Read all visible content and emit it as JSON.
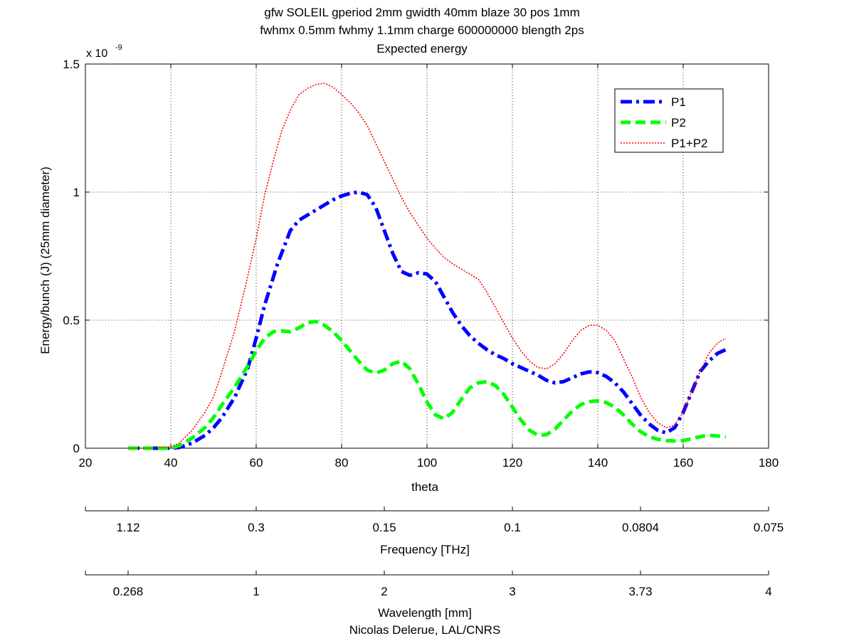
{
  "chart_data": {
    "type": "line",
    "title_lines": [
      "gfw SOLEIL gperiod 2mm gwidth 40mm blaze 30 pos 1mm",
      "fwhmx 0.5mm fwhmy 1.1mm charge 600000000 blength 2ps",
      "Expected energy"
    ],
    "xlabel": "theta",
    "ylabel": "Energy/bunch (J) (25mm diameter)",
    "y_exponent_label": "x 10",
    "y_exponent_power": "-9",
    "xlim": [
      20,
      180
    ],
    "ylim": [
      0,
      1.5
    ],
    "y_scale_factor": 1e-09,
    "xticks": [
      20,
      40,
      60,
      80,
      100,
      120,
      140,
      160,
      180
    ],
    "xtick_labels": [
      "20",
      "40",
      "60",
      "80",
      "100",
      "120",
      "140",
      "160",
      "180"
    ],
    "yticks": [
      0,
      0.5,
      1,
      1.5
    ],
    "ytick_labels": [
      "0",
      "0.5",
      "1",
      "1.5"
    ],
    "grid": true,
    "legend_position": "top-right",
    "series": [
      {
        "name": "P1",
        "color": "#0000ff",
        "style": "dashdot",
        "x": [
          30,
          35,
          40,
          42,
          45,
          48,
          50,
          52,
          55,
          58,
          60,
          62,
          65,
          68,
          70,
          72,
          75,
          78,
          80,
          82,
          84,
          86,
          88,
          90,
          92,
          94,
          96,
          98,
          100,
          102,
          104,
          106,
          108,
          110,
          112,
          114,
          116,
          118,
          120,
          122,
          124,
          126,
          128,
          130,
          132,
          134,
          136,
          138,
          140,
          142,
          144,
          146,
          148,
          150,
          152,
          154,
          156,
          158,
          160,
          162,
          164,
          166,
          168,
          170
        ],
        "y": [
          0,
          0,
          0,
          0.003,
          0.02,
          0.05,
          0.08,
          0.12,
          0.2,
          0.31,
          0.43,
          0.56,
          0.72,
          0.85,
          0.89,
          0.91,
          0.94,
          0.97,
          0.985,
          0.995,
          1.0,
          0.99,
          0.94,
          0.85,
          0.76,
          0.69,
          0.675,
          0.685,
          0.68,
          0.65,
          0.59,
          0.53,
          0.48,
          0.44,
          0.41,
          0.385,
          0.365,
          0.35,
          0.33,
          0.315,
          0.3,
          0.285,
          0.265,
          0.255,
          0.26,
          0.275,
          0.29,
          0.298,
          0.295,
          0.28,
          0.255,
          0.22,
          0.175,
          0.13,
          0.095,
          0.07,
          0.06,
          0.08,
          0.14,
          0.22,
          0.3,
          0.34,
          0.37,
          0.385
        ]
      },
      {
        "name": "P2",
        "color": "#00ff00",
        "style": "dashed",
        "x": [
          30,
          35,
          40,
          42,
          45,
          48,
          50,
          52,
          55,
          58,
          60,
          62,
          64,
          66,
          68,
          70,
          72,
          74,
          76,
          78,
          80,
          82,
          84,
          86,
          88,
          90,
          92,
          94,
          96,
          98,
          100,
          102,
          104,
          106,
          108,
          110,
          112,
          114,
          116,
          118,
          120,
          122,
          124,
          126,
          128,
          130,
          132,
          134,
          136,
          138,
          140,
          142,
          144,
          146,
          148,
          150,
          152,
          154,
          156,
          158,
          160,
          162,
          164,
          166,
          168,
          170
        ],
        "y": [
          0,
          0,
          0,
          0.01,
          0.04,
          0.08,
          0.12,
          0.17,
          0.24,
          0.32,
          0.38,
          0.43,
          0.455,
          0.458,
          0.455,
          0.47,
          0.49,
          0.495,
          0.48,
          0.455,
          0.42,
          0.38,
          0.34,
          0.305,
          0.293,
          0.305,
          0.33,
          0.34,
          0.31,
          0.25,
          0.18,
          0.13,
          0.115,
          0.14,
          0.19,
          0.235,
          0.255,
          0.26,
          0.245,
          0.21,
          0.16,
          0.11,
          0.07,
          0.05,
          0.053,
          0.075,
          0.11,
          0.145,
          0.17,
          0.182,
          0.185,
          0.178,
          0.16,
          0.13,
          0.095,
          0.065,
          0.045,
          0.035,
          0.03,
          0.028,
          0.03,
          0.037,
          0.045,
          0.05,
          0.048,
          0.044
        ]
      },
      {
        "name": "P1+P2",
        "color": "#ff0000",
        "style": "dotted",
        "x": [
          30,
          35,
          40,
          42,
          45,
          48,
          50,
          52,
          55,
          58,
          60,
          62,
          64,
          66,
          68,
          70,
          72,
          74,
          76,
          78,
          80,
          82,
          84,
          86,
          88,
          90,
          92,
          94,
          96,
          98,
          100,
          102,
          104,
          106,
          108,
          110,
          112,
          114,
          116,
          118,
          120,
          122,
          124,
          126,
          128,
          130,
          132,
          134,
          136,
          138,
          140,
          142,
          144,
          146,
          148,
          150,
          152,
          154,
          156,
          158,
          160,
          162,
          164,
          166,
          168,
          170
        ],
        "y": [
          0,
          0,
          0.005,
          0.02,
          0.07,
          0.14,
          0.2,
          0.3,
          0.46,
          0.67,
          0.82,
          0.99,
          1.12,
          1.24,
          1.32,
          1.38,
          1.405,
          1.42,
          1.425,
          1.41,
          1.38,
          1.35,
          1.31,
          1.26,
          1.19,
          1.12,
          1.05,
          0.98,
          0.92,
          0.87,
          0.82,
          0.78,
          0.745,
          0.72,
          0.7,
          0.68,
          0.66,
          0.61,
          0.55,
          0.49,
          0.43,
          0.38,
          0.34,
          0.315,
          0.31,
          0.33,
          0.37,
          0.42,
          0.46,
          0.48,
          0.48,
          0.46,
          0.42,
          0.35,
          0.28,
          0.2,
          0.14,
          0.1,
          0.08,
          0.09,
          0.14,
          0.22,
          0.3,
          0.37,
          0.41,
          0.43
        ]
      }
    ]
  },
  "frequency_axis": {
    "label": "Frequency [THz]",
    "tick_labels": [
      "1.12",
      "0.3",
      "0.15",
      "0.1",
      "0.0804",
      "0.075"
    ]
  },
  "wavelength_axis": {
    "label": "Wavelength [mm]",
    "tick_labels": [
      "0.268",
      "1",
      "2",
      "3",
      "3.73",
      "4"
    ]
  },
  "credit": "Nicolas Delerue, LAL/CNRS"
}
